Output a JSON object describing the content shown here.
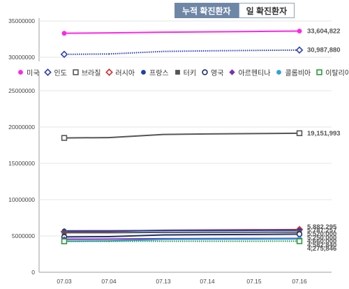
{
  "toggle": {
    "cumulative_label": "누적 확진환자",
    "daily_label": "일 확진환자"
  },
  "chart_data": {
    "type": "line",
    "title": "",
    "xlabel": "",
    "ylabel": "",
    "categories": [
      "07.03",
      "07.04",
      "07.13",
      "07.14",
      "07.15",
      "07.16"
    ],
    "ylim": [
      0,
      35000000
    ],
    "yticks": [
      "0",
      "5000000",
      "10000000",
      "15000000",
      "20000000",
      "25000000",
      "30000000",
      "35000000"
    ],
    "axis_break": [
      25500000,
      28500000
    ],
    "grid": true,
    "legend_position": "top",
    "series": [
      {
        "name": "미국",
        "color": "#ff26e6",
        "marker": "dot-filled",
        "line": "solid",
        "values": [
          33300000,
          33350000,
          33450000,
          33500000,
          33550000,
          33604822
        ],
        "end_label": "33,604,822"
      },
      {
        "name": "인도",
        "color": "#2b3dbd",
        "marker": "diamond-open",
        "line": "dotted",
        "values": [
          30400000,
          30450000,
          30800000,
          30880000,
          30940000,
          30987880
        ],
        "end_label": "30,987,880"
      },
      {
        "name": "브라질",
        "color": "#555555",
        "marker": "square-open",
        "line": "solid",
        "values": [
          18500000,
          18550000,
          18980000,
          19050000,
          19100000,
          19151993
        ],
        "end_label": "19,151,993"
      },
      {
        "name": "러시아",
        "color": "#d62b2b",
        "marker": "diamond-open",
        "line": "solid",
        "values": [
          5580000,
          5620000,
          5780000,
          5820000,
          5850000,
          5882295
        ],
        "end_label": "5,882,295"
      },
      {
        "name": "프랑스",
        "color": "#1f3fa6",
        "marker": "dot-filled",
        "line": "solid",
        "values": [
          5700000,
          5710000,
          5750000,
          5760000,
          5775000,
          5787257
        ],
        "end_label": "5,787,257"
      },
      {
        "name": "터키",
        "color": "#555555",
        "marker": "square-filled",
        "line": "solid",
        "values": [
          5440000,
          5450000,
          5490000,
          5500000,
          5510000,
          5520000
        ],
        "end_label": "5,520,000"
      },
      {
        "name": "영국",
        "color": "#1f2f6b",
        "marker": "dot-open",
        "line": "solid",
        "values": [
          4870000,
          4900000,
          5150000,
          5180000,
          5210000,
          5250000
        ],
        "end_label": "5,250,000"
      },
      {
        "name": "아르헨티나",
        "color": "#7b2fb5",
        "marker": "diamond-filled",
        "line": "solid",
        "values": [
          4550000,
          4570000,
          4630000,
          4640000,
          4650000,
          4660000
        ],
        "end_label": "4,660,000"
      },
      {
        "name": "콜롬비아",
        "color": "#2ba4dc",
        "marker": "dot-filled",
        "line": "solid",
        "values": [
          4280000,
          4300000,
          4520000,
          4540000,
          4560000,
          4582840
        ],
        "end_label": "4,582,840"
      },
      {
        "name": "이탈리아",
        "color": "#2a9a3a",
        "marker": "square-open",
        "line": "dotted",
        "values": [
          4260000,
          4262000,
          4268000,
          4270000,
          4272000,
          4275846
        ],
        "end_label": "4,275,846"
      }
    ]
  }
}
